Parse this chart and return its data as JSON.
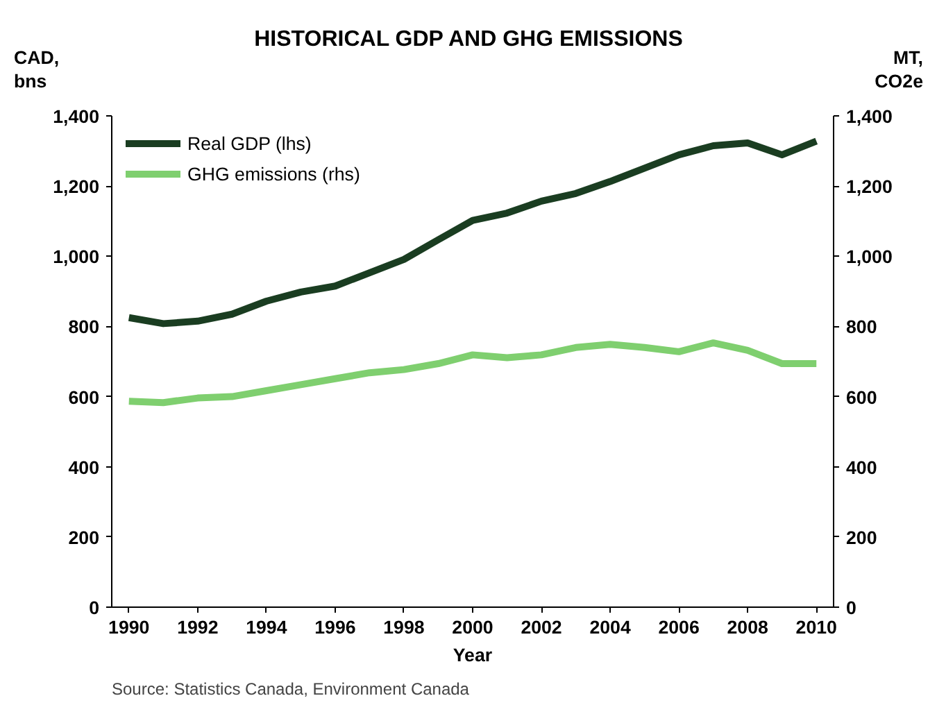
{
  "chart_data": {
    "type": "line",
    "title": "HISTORICAL GDP AND GHG EMISSIONS",
    "xlabel": "Year",
    "ylabel": "CAD, bns",
    "y2label": "MT, CO2e",
    "x": [
      1990,
      1991,
      1992,
      1993,
      1994,
      1995,
      1996,
      1997,
      1998,
      1999,
      2000,
      2001,
      2002,
      2003,
      2004,
      2005,
      2006,
      2007,
      2008,
      2009,
      2010
    ],
    "series": [
      {
        "name": "Real GDP (lhs)",
        "color": "#1a3d21",
        "values": [
          825,
          808,
          815,
          835,
          872,
          898,
          915,
          953,
          991,
          1047,
          1102,
          1123,
          1157,
          1179,
          1213,
          1251,
          1289,
          1315,
          1323,
          1289,
          1328
        ]
      },
      {
        "name": "GHG emissions (rhs)",
        "color": "#7fcf6f",
        "axis": "y2",
        "values": [
          587,
          583,
          596,
          600,
          617,
          634,
          651,
          668,
          677,
          694,
          719,
          711,
          719,
          740,
          749,
          740,
          728,
          753,
          732,
          694,
          694
        ]
      }
    ],
    "xlim": [
      1989.5,
      2010.5
    ],
    "xticks": [
      1990,
      1992,
      1994,
      1996,
      1998,
      2000,
      2002,
      2004,
      2006,
      2008,
      2010
    ],
    "ylim": [
      0,
      1400
    ],
    "yticks": [
      {
        "value": 0,
        "label": "0"
      },
      {
        "value": 200,
        "label": "200"
      },
      {
        "value": 400,
        "label": "400"
      },
      {
        "value": 600,
        "label": "600"
      },
      {
        "value": 800,
        "label": "800"
      },
      {
        "value": 1000,
        "label": "1,000"
      },
      {
        "value": 1200,
        "label": "1,200"
      },
      {
        "value": 1400,
        "label": "1,400"
      }
    ],
    "y2lim": [
      0,
      1400
    ],
    "y2ticks": [
      {
        "value": 0,
        "label": "0"
      },
      {
        "value": 200,
        "label": "200"
      },
      {
        "value": 400,
        "label": "400"
      },
      {
        "value": 600,
        "label": "600"
      },
      {
        "value": 800,
        "label": "800"
      },
      {
        "value": 1000,
        "label": "1,000"
      },
      {
        "value": 1200,
        "label": "1,200"
      },
      {
        "value": 1400,
        "label": "1,400"
      }
    ],
    "grid": false,
    "legend": "top left",
    "line_style": "solid",
    "annotations": [
      "Source: Statistics Canada, Environment Canada"
    ]
  }
}
